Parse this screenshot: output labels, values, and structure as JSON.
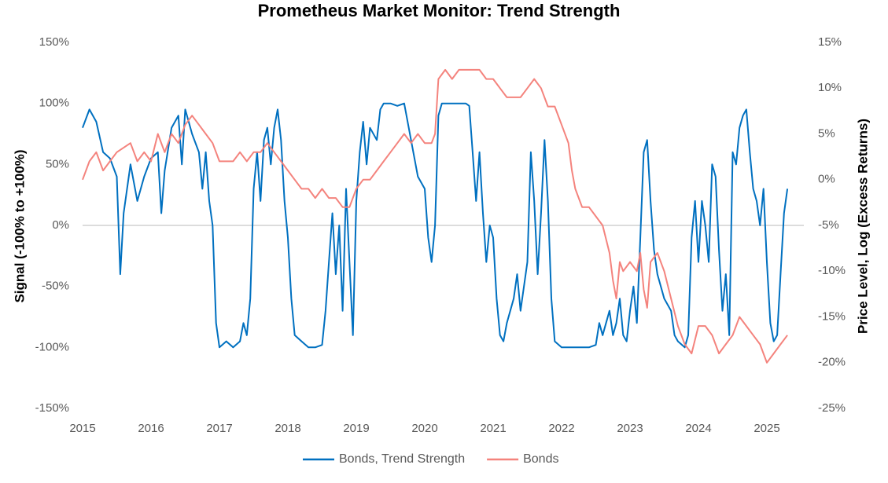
{
  "chart_data": {
    "type": "line",
    "title": "Prometheus Market Monitor: Trend Strength",
    "y_label": "Signal (-100% to +100%)",
    "y2_label": "Price Level, Log (Excess Returns)",
    "xlim": [
      2015,
      2025.54
    ],
    "xticks": [
      2015,
      2016,
      2017,
      2018,
      2019,
      2020,
      2021,
      2022,
      2023,
      2024,
      2025
    ],
    "ylim": [
      -150,
      150
    ],
    "yticks": [
      {
        "value": -150,
        "label": "-150%"
      },
      {
        "value": -100,
        "label": "-100%"
      },
      {
        "value": -50,
        "label": "-50%"
      },
      {
        "value": 0,
        "label": "0%"
      },
      {
        "value": 50,
        "label": "50%"
      },
      {
        "value": 100,
        "label": "100%"
      },
      {
        "value": 150,
        "label": "150%"
      }
    ],
    "y2lim": [
      -25,
      15
    ],
    "y2ticks": [
      {
        "value": -25,
        "label": "-25%"
      },
      {
        "value": -20,
        "label": "-20%"
      },
      {
        "value": -15,
        "label": "-15%"
      },
      {
        "value": -10,
        "label": "-10%"
      },
      {
        "value": -5,
        "label": "-5%"
      },
      {
        "value": 0,
        "label": "0%"
      },
      {
        "value": 5,
        "label": "5%"
      },
      {
        "value": 10,
        "label": "10%"
      },
      {
        "value": 15,
        "label": "15%"
      }
    ],
    "legend": "bottom",
    "series": [
      {
        "name": "Bonds, Trend Strength",
        "color": "#0070c0",
        "x": [
          2015,
          2015.1,
          2015.2,
          2015.3,
          2015.4,
          2015.5,
          2015.55,
          2015.6,
          2015.7,
          2015.8,
          2015.9,
          2016,
          2016.1,
          2016.15,
          2016.2,
          2016.3,
          2016.4,
          2016.45,
          2016.5,
          2016.55,
          2016.6,
          2016.7,
          2016.75,
          2016.8,
          2016.85,
          2016.9,
          2016.95,
          2017,
          2017.1,
          2017.2,
          2017.3,
          2017.35,
          2017.4,
          2017.45,
          2017.5,
          2017.55,
          2017.6,
          2017.65,
          2017.7,
          2017.75,
          2017.8,
          2017.85,
          2017.9,
          2017.95,
          2018,
          2018.05,
          2018.1,
          2018.2,
          2018.3,
          2018.4,
          2018.5,
          2018.55,
          2018.6,
          2018.65,
          2018.7,
          2018.75,
          2018.8,
          2018.85,
          2018.9,
          2018.95,
          2019,
          2019.05,
          2019.1,
          2019.15,
          2019.2,
          2019.3,
          2019.35,
          2019.4,
          2019.5,
          2019.6,
          2019.7,
          2019.8,
          2019.9,
          2020,
          2020.05,
          2020.1,
          2020.15,
          2020.2,
          2020.25,
          2020.4,
          2020.5,
          2020.6,
          2020.65,
          2020.7,
          2020.75,
          2020.8,
          2020.85,
          2020.9,
          2020.95,
          2021,
          2021.05,
          2021.1,
          2021.15,
          2021.2,
          2021.3,
          2021.35,
          2021.4,
          2021.5,
          2021.55,
          2021.6,
          2021.65,
          2021.7,
          2021.75,
          2021.8,
          2021.85,
          2021.9,
          2022,
          2022.2,
          2022.4,
          2022.5,
          2022.55,
          2022.6,
          2022.7,
          2022.75,
          2022.8,
          2022.85,
          2022.9,
          2022.95,
          2023,
          2023.05,
          2023.1,
          2023.15,
          2023.2,
          2023.25,
          2023.3,
          2023.35,
          2023.4,
          2023.5,
          2023.6,
          2023.65,
          2023.7,
          2023.8,
          2023.85,
          2023.9,
          2023.95,
          2024,
          2024.05,
          2024.1,
          2024.15,
          2024.2,
          2024.25,
          2024.3,
          2024.35,
          2024.4,
          2024.45,
          2024.5,
          2024.55,
          2024.6,
          2024.65,
          2024.7,
          2024.75,
          2024.8,
          2024.85,
          2024.9,
          2024.95,
          2025,
          2025.05,
          2025.1,
          2025.15,
          2025.2,
          2025.25,
          2025.3
        ],
        "values": [
          80,
          95,
          85,
          60,
          55,
          40,
          -40,
          10,
          50,
          20,
          40,
          55,
          60,
          10,
          45,
          80,
          90,
          50,
          95,
          85,
          75,
          60,
          30,
          60,
          20,
          0,
          -80,
          -100,
          -95,
          -100,
          -95,
          -80,
          -90,
          -60,
          30,
          60,
          20,
          70,
          80,
          50,
          80,
          95,
          70,
          20,
          -10,
          -60,
          -90,
          -95,
          -100,
          -100,
          -98,
          -70,
          -30,
          10,
          -40,
          0,
          -70,
          30,
          -30,
          -90,
          20,
          60,
          85,
          50,
          80,
          70,
          95,
          100,
          100,
          98,
          100,
          70,
          40,
          30,
          -10,
          -30,
          0,
          90,
          100,
          100,
          100,
          100,
          98,
          60,
          20,
          60,
          10,
          -30,
          0,
          -10,
          -60,
          -90,
          -95,
          -80,
          -60,
          -40,
          -70,
          -30,
          60,
          20,
          -40,
          10,
          70,
          20,
          -60,
          -95,
          -100,
          -100,
          -100,
          -98,
          -80,
          -90,
          -70,
          -90,
          -80,
          -60,
          -90,
          -95,
          -70,
          -50,
          -80,
          -10,
          60,
          70,
          20,
          -20,
          -40,
          -60,
          -70,
          -90,
          -95,
          -100,
          -90,
          -10,
          20,
          -30,
          20,
          0,
          -30,
          50,
          40,
          -20,
          -70,
          -40,
          -90,
          60,
          50,
          80,
          90,
          95,
          60,
          30,
          20,
          0,
          30,
          -30,
          -80,
          -95,
          -90,
          -40,
          10,
          30
        ]
      },
      {
        "name": "Bonds",
        "color": "#f4837d",
        "axis": "y2",
        "x": [
          2015,
          2015.1,
          2015.2,
          2015.3,
          2015.4,
          2015.5,
          2015.7,
          2015.8,
          2015.9,
          2016,
          2016.1,
          2016.2,
          2016.3,
          2016.4,
          2016.5,
          2016.6,
          2016.7,
          2016.8,
          2016.9,
          2017,
          2017.1,
          2017.2,
          2017.3,
          2017.4,
          2017.5,
          2017.6,
          2017.7,
          2017.8,
          2017.9,
          2018,
          2018.1,
          2018.2,
          2018.3,
          2018.4,
          2018.5,
          2018.6,
          2018.7,
          2018.8,
          2018.9,
          2019,
          2019.1,
          2019.2,
          2019.3,
          2019.4,
          2019.5,
          2019.6,
          2019.7,
          2019.8,
          2019.9,
          2020,
          2020.1,
          2020.15,
          2020.2,
          2020.3,
          2020.4,
          2020.5,
          2020.6,
          2020.7,
          2020.8,
          2020.9,
          2021,
          2021.1,
          2021.2,
          2021.3,
          2021.4,
          2021.5,
          2021.6,
          2021.7,
          2021.8,
          2021.9,
          2022,
          2022.1,
          2022.15,
          2022.2,
          2022.3,
          2022.4,
          2022.5,
          2022.6,
          2022.7,
          2022.75,
          2022.8,
          2022.85,
          2022.9,
          2023,
          2023.1,
          2023.15,
          2023.2,
          2023.25,
          2023.3,
          2023.4,
          2023.5,
          2023.6,
          2023.7,
          2023.8,
          2023.9,
          2024,
          2024.1,
          2024.2,
          2024.3,
          2024.4,
          2024.5,
          2024.6,
          2024.7,
          2024.8,
          2024.9,
          2025,
          2025.1,
          2025.2,
          2025.3
        ],
        "values": [
          0,
          2,
          3,
          1,
          2,
          3,
          4,
          2,
          3,
          2,
          5,
          3,
          5,
          4,
          6,
          7,
          6,
          5,
          4,
          2,
          2,
          2,
          3,
          2,
          3,
          3,
          4,
          3,
          2,
          1,
          0,
          -1,
          -1,
          -2,
          -1,
          -2,
          -2,
          -3,
          -3,
          -1,
          0,
          0,
          1,
          2,
          3,
          4,
          5,
          4,
          5,
          4,
          4,
          5,
          11,
          12,
          11,
          12,
          12,
          12,
          12,
          11,
          11,
          10,
          9,
          9,
          9,
          10,
          11,
          10,
          8,
          8,
          6,
          4,
          1,
          -1,
          -3,
          -3,
          -4,
          -5,
          -8,
          -11,
          -13,
          -9,
          -10,
          -9,
          -10,
          -8,
          -12,
          -14,
          -9,
          -8,
          -10,
          -13,
          -16,
          -18,
          -19,
          -16,
          -16,
          -17,
          -19,
          -18,
          -17,
          -15,
          -16,
          -17,
          -18,
          -20,
          -19,
          -18,
          -17
        ]
      }
    ]
  }
}
